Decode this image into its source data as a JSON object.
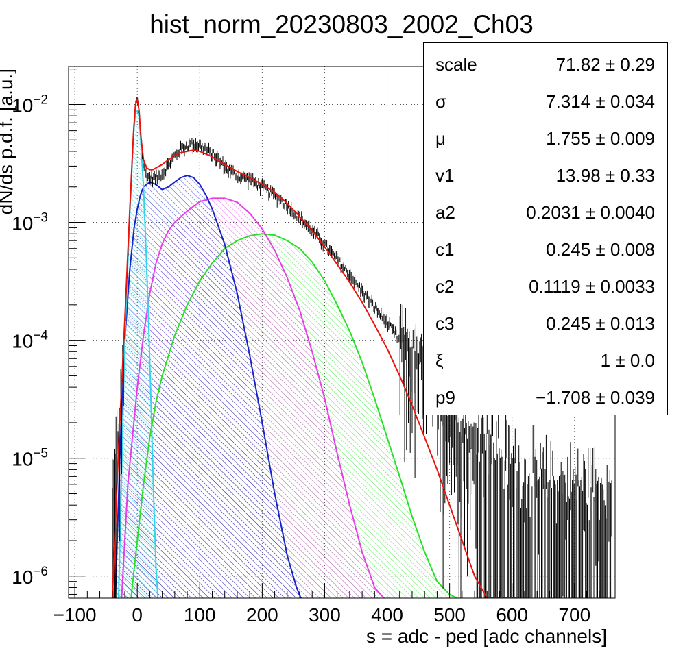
{
  "chart_data": {
    "type": "line",
    "title": "hist_norm_20230803_2002_Ch03",
    "xlabel": "s = adc - ped [adc channels]",
    "ylabel": "dN/ds p.d.f. [a.u.]",
    "xlim": [
      -110,
      765
    ],
    "ylim": [
      6.5e-07,
      0.021
    ],
    "yscale": "log",
    "grid": true,
    "x_ticks": [
      -100,
      0,
      100,
      200,
      300,
      400,
      500,
      600,
      700
    ],
    "x_tick_labels": [
      "−100",
      "0",
      "100",
      "200",
      "300",
      "400",
      "500",
      "600",
      "700"
    ],
    "y_ticks": [
      0.01,
      0.001,
      0.0001,
      1e-05,
      1e-06
    ],
    "y_tick_bases": [
      "10",
      "10",
      "10",
      "10",
      "10"
    ],
    "y_tick_exponents": [
      "−2",
      "−3",
      "−4",
      "−5",
      "−6"
    ],
    "colors": {
      "data": "#000000",
      "total_fit": "#e8150f",
      "pedestal": "#33d6e8",
      "pe1": "#1424c8",
      "pe2": "#e83ce8",
      "pe3": "#28e028"
    },
    "series": [
      {
        "key": "data",
        "style": "noisy-histogram",
        "x": [
          -40,
          -30,
          -20,
          -12,
          -6,
          -3,
          0,
          3,
          6,
          10,
          15,
          20,
          30,
          40,
          50,
          60,
          70,
          80,
          90,
          100,
          110,
          120,
          130,
          140,
          150,
          160,
          170,
          180,
          200,
          220,
          240,
          260,
          280,
          300,
          320,
          340,
          360,
          380,
          400,
          420,
          440,
          460,
          480,
          500,
          520,
          540,
          560,
          580,
          600,
          620,
          640,
          660,
          680,
          700,
          720,
          740,
          760
        ],
        "y": [
          2e-06,
          1.2e-05,
          0.00012,
          0.0012,
          0.0055,
          0.0095,
          0.0113,
          0.009,
          0.005,
          0.0029,
          0.0025,
          0.0024,
          0.0024,
          0.0026,
          0.0031,
          0.0037,
          0.0042,
          0.0045,
          0.0046,
          0.0045,
          0.0042,
          0.0038,
          0.0034,
          0.003,
          0.0027,
          0.0025,
          0.0024,
          0.0023,
          0.002,
          0.0017,
          0.0014,
          0.0011,
          0.00085,
          0.00065,
          0.00048,
          0.00036,
          0.00026,
          0.00019,
          0.00014,
          0.0001,
          7e-05,
          5e-05,
          3.2e-05,
          2.2e-05,
          1.5e-05,
          1e-05,
          7e-06,
          5e-06,
          4e-06,
          3e-06,
          3e-06,
          2.5e-06,
          2.5e-06,
          2.5e-06,
          2.5e-06,
          2.5e-06,
          2.5e-06
        ]
      },
      {
        "key": "total_fit",
        "style": "line",
        "x": [
          -40,
          -30,
          -20,
          -12,
          -6,
          -3,
          0,
          3,
          6,
          10,
          15,
          20,
          25,
          30,
          40,
          50,
          60,
          70,
          80,
          90,
          100,
          110,
          120,
          130,
          140,
          150,
          160,
          180,
          200,
          220,
          240,
          260,
          280,
          300,
          320,
          340,
          360,
          380,
          400,
          420,
          440,
          460,
          480,
          500,
          520,
          540,
          560,
          580,
          600,
          610
        ],
        "y": [
          6.5e-07,
          1.2e-05,
          0.00015,
          0.0013,
          0.0058,
          0.0098,
          0.0112,
          0.0088,
          0.0052,
          0.0034,
          0.0029,
          0.0028,
          0.0028,
          0.0029,
          0.0031,
          0.0034,
          0.0037,
          0.0039,
          0.004,
          0.0041,
          0.004,
          0.0038,
          0.0036,
          0.0033,
          0.0031,
          0.0029,
          0.0027,
          0.0024,
          0.0021,
          0.0018,
          0.00145,
          0.00112,
          0.00085,
          0.00062,
          0.00044,
          0.00031,
          0.00021,
          0.000135,
          8.5e-05,
          5e-05,
          2.8e-05,
          1.5e-05,
          8e-06,
          4e-06,
          2e-06,
          1e-06,
          6.5e-07,
          6.5e-07,
          6.5e-07,
          6.5e-07
        ]
      },
      {
        "key": "pedestal",
        "style": "filled-hatched",
        "x": [
          -30,
          -20,
          -12,
          -6,
          -3,
          0,
          3,
          6,
          10,
          14,
          18,
          22,
          26,
          30,
          33
        ],
        "y": [
          6.5e-07,
          0.0001,
          0.0012,
          0.0055,
          0.0085,
          0.0088,
          0.0078,
          0.0045,
          0.002,
          0.0006,
          0.00015,
          3e-05,
          5e-06,
          1.2e-06,
          6.5e-07
        ]
      },
      {
        "key": "pe1",
        "style": "filled-hatched",
        "x": [
          -35,
          -28,
          -20,
          -12,
          -5,
          0,
          5,
          10,
          15,
          20,
          30,
          40,
          50,
          60,
          70,
          80,
          90,
          100,
          110,
          120,
          140,
          160,
          180,
          200,
          220,
          240,
          255,
          262
        ],
        "y": [
          6.5e-07,
          1e-05,
          0.0001,
          0.0004,
          0.0009,
          0.0013,
          0.0017,
          0.002,
          0.0021,
          0.0022,
          0.0021,
          0.0019,
          0.002,
          0.0022,
          0.0024,
          0.0025,
          0.0024,
          0.0021,
          0.0017,
          0.0013,
          0.00065,
          0.00025,
          7.5e-05,
          2e-05,
          5e-06,
          1.5e-06,
          8e-07,
          6.5e-07
        ]
      },
      {
        "key": "pe2",
        "style": "filled-hatched",
        "x": [
          -25,
          -15,
          0,
          10,
          20,
          30,
          40,
          50,
          60,
          80,
          100,
          120,
          140,
          160,
          180,
          200,
          220,
          240,
          260,
          280,
          300,
          320,
          340,
          360,
          380,
          395
        ],
        "y": [
          6.5e-07,
          6e-06,
          4e-05,
          0.00011,
          0.00025,
          0.00045,
          0.00066,
          0.00085,
          0.001,
          0.00125,
          0.0015,
          0.0016,
          0.0016,
          0.00148,
          0.0012,
          0.00088,
          0.00058,
          0.00034,
          0.00018,
          8e-05,
          3.2e-05,
          1.1e-05,
          4e-06,
          1.6e-06,
          8e-07,
          6.5e-07
        ]
      },
      {
        "key": "pe3",
        "style": "filled-hatched",
        "x": [
          -10,
          0,
          10,
          20,
          30,
          40,
          60,
          80,
          100,
          120,
          140,
          160,
          180,
          200,
          220,
          240,
          260,
          280,
          300,
          320,
          340,
          360,
          380,
          400,
          420,
          440,
          460,
          480,
          500,
          512
        ],
        "y": [
          6.5e-07,
          2e-06,
          6e-06,
          1.5e-05,
          3e-05,
          5e-05,
          0.00011,
          0.0002,
          0.00032,
          0.00045,
          0.0006,
          0.0007,
          0.00077,
          0.0008,
          0.00078,
          0.0007,
          0.0006,
          0.00046,
          0.00032,
          0.0002,
          0.00012,
          6.5e-05,
          3.2e-05,
          1.5e-05,
          7e-06,
          3.2e-06,
          1.6e-06,
          9e-07,
          7e-07,
          6.5e-07
        ]
      }
    ]
  },
  "stats": [
    {
      "name": "scale",
      "value": "71.82",
      "error": "0.29"
    },
    {
      "name": "σ",
      "value": "7.314",
      "error": "0.034"
    },
    {
      "name": "μ",
      "value": "1.755",
      "error": "0.009"
    },
    {
      "name": "v1",
      "value": "13.98",
      "error": "0.33"
    },
    {
      "name": "a2",
      "value": "0.2031",
      "error": "0.0040"
    },
    {
      "name": "c1",
      "value": "0.245",
      "error": "0.008"
    },
    {
      "name": "c2",
      "value": "0.1119",
      "error": "0.0033"
    },
    {
      "name": "c3",
      "value": "0.245",
      "error": "0.013"
    },
    {
      "name": "ξ",
      "value": "1",
      "error": "0.0"
    },
    {
      "name": "p9",
      "value": "−1.708",
      "error": "0.039"
    }
  ]
}
